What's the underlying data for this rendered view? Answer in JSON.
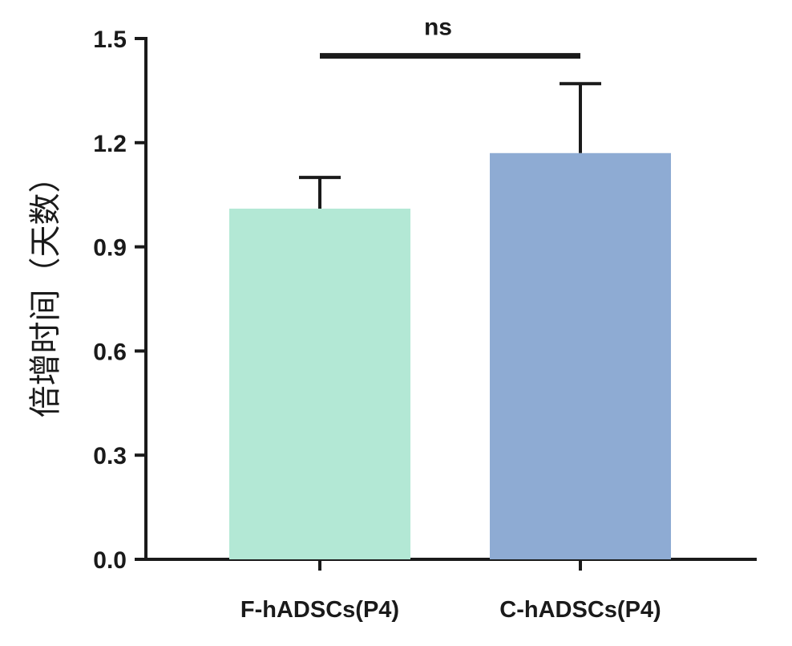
{
  "chart_data": {
    "type": "bar",
    "categories": [
      "F-hADSCs(P4)",
      "C-hADSCs(P4)"
    ],
    "values": [
      1.01,
      1.17
    ],
    "errors": [
      0.09,
      0.2
    ],
    "colors": [
      "#b3e8d5",
      "#8eabd3"
    ],
    "ylabel": "倍增时间（天数）",
    "ylim": [
      0,
      1.5
    ],
    "yticks": [
      0.0,
      0.3,
      0.6,
      0.9,
      1.2,
      1.5
    ],
    "ytick_labels": [
      "0.0",
      "0.3",
      "0.6",
      "0.9",
      "1.2",
      "1.5"
    ],
    "grid": false,
    "legend": "none",
    "annotation": {
      "text": "ns",
      "between": [
        "F-hADSCs(P4)",
        "C-hADSCs(P4)"
      ],
      "y": 1.45
    }
  }
}
